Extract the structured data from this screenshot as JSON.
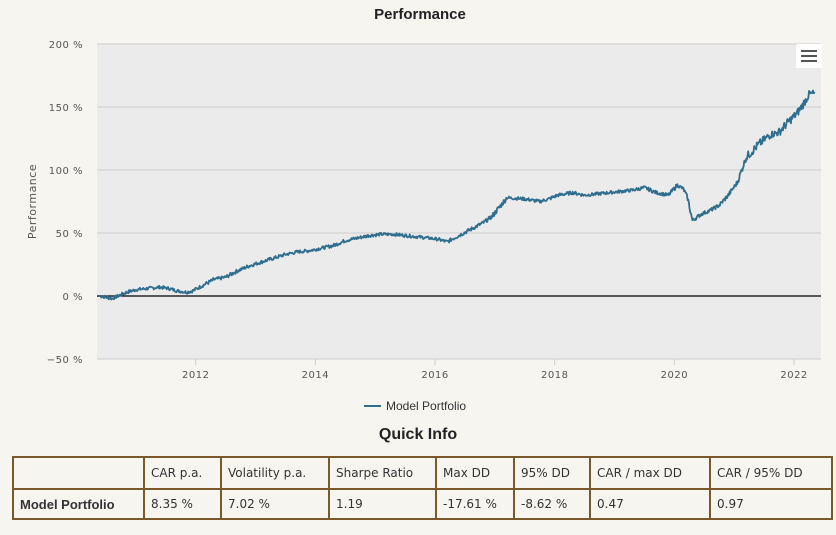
{
  "chart_data": {
    "type": "line",
    "title": "Performance",
    "ylabel": "Performance",
    "xlabel": "",
    "xlim": [
      2010.35,
      2022.45
    ],
    "ylim": [
      -50,
      200
    ],
    "y_ticks": [
      -50,
      0,
      50,
      100,
      150,
      200
    ],
    "y_tick_labels": [
      "−50 %",
      "0 %",
      "50 %",
      "100 %",
      "150 %",
      "200 %"
    ],
    "x_ticks": [
      2012,
      2014,
      2016,
      2018,
      2020,
      2022
    ],
    "x_tick_labels": [
      "2012",
      "2014",
      "2016",
      "2018",
      "2020",
      "2022"
    ],
    "grid": true,
    "legend_position": "bottom-center",
    "line_color": "#2f6e8e",
    "zero_line_color": "#000000",
    "plot_background": "#ebebeb",
    "series": [
      {
        "name": "Model Portfolio",
        "x": [
          2010.4,
          2010.5,
          2010.6,
          2010.7,
          2010.85,
          2011.0,
          2011.2,
          2011.4,
          2011.55,
          2011.7,
          2011.85,
          2011.95,
          2012.1,
          2012.3,
          2012.5,
          2012.7,
          2012.9,
          2013.1,
          2013.3,
          2013.5,
          2013.7,
          2013.9,
          2014.1,
          2014.3,
          2014.5,
          2014.7,
          2014.9,
          2015.1,
          2015.3,
          2015.5,
          2015.7,
          2015.9,
          2016.05,
          2016.2,
          2016.4,
          2016.6,
          2016.8,
          2016.95,
          2017.2,
          2017.5,
          2017.75,
          2017.9,
          2018.05,
          2018.3,
          2018.5,
          2018.7,
          2018.9,
          2019.1,
          2019.3,
          2019.5,
          2019.7,
          2019.9,
          2020.05,
          2020.15,
          2020.22,
          2020.3,
          2020.45,
          2020.6,
          2020.75,
          2020.9,
          2021.05,
          2021.2,
          2021.4,
          2021.6,
          2021.75,
          2021.9,
          2022.05,
          2022.15,
          2022.25,
          2022.35
        ],
        "values": [
          0,
          -1,
          -2,
          0,
          3,
          5,
          6,
          7,
          6,
          4,
          3,
          4,
          8,
          13,
          15,
          20,
          24,
          27,
          30,
          33,
          35,
          36,
          38,
          40,
          44,
          46,
          48,
          49,
          49,
          48,
          47,
          46,
          45,
          43,
          48,
          53,
          58,
          63,
          78,
          77,
          75,
          77,
          80,
          82,
          80,
          81,
          82,
          83,
          84,
          86,
          82,
          80,
          88,
          85,
          78,
          60,
          65,
          68,
          72,
          80,
          90,
          110,
          120,
          128,
          130,
          138,
          145,
          152,
          160,
          161
        ]
      }
    ]
  },
  "quick_info": {
    "title": "Quick Info",
    "headers": [
      "",
      "CAR p.a.",
      "Volatility p.a.",
      "Sharpe Ratio",
      "Max DD",
      "95% DD",
      "CAR / max DD",
      "CAR / 95% DD"
    ],
    "rows": [
      [
        "Model Portfolio",
        "8.35 %",
        "7.02 %",
        "1.19",
        "-17.61 %",
        "-8.62 %",
        "0.47",
        "0.97"
      ]
    ]
  }
}
